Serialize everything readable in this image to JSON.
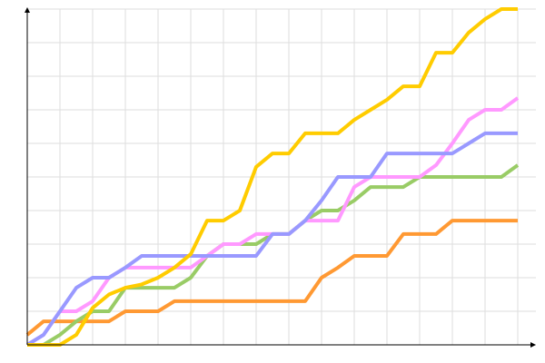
{
  "chart_data": {
    "type": "line",
    "grid": true,
    "tick_labels": false,
    "x": [
      0,
      1,
      2,
      3,
      4,
      5,
      6,
      7,
      8,
      9,
      10,
      11,
      12,
      13,
      14,
      15,
      16,
      17,
      18,
      19,
      20,
      21,
      22,
      23,
      24,
      25,
      26,
      27,
      28,
      29,
      30
    ],
    "xlim": [
      0,
      30
    ],
    "ylim": [
      0,
      10
    ],
    "xticks": [
      0,
      2,
      4,
      6,
      8,
      10,
      12,
      14,
      16,
      18,
      20,
      22,
      24,
      26,
      28,
      30
    ],
    "yticks": [
      0,
      1,
      2,
      3,
      4,
      5,
      6,
      7,
      8,
      9,
      10
    ],
    "series": [
      {
        "color": "#ff9933",
        "values": [
          0.3,
          0.7,
          0.7,
          0.7,
          0.7,
          0.7,
          1,
          1,
          1,
          1.3,
          1.3,
          1.3,
          1.3,
          1.3,
          1.3,
          1.3,
          1.3,
          1.3,
          2,
          2.3,
          2.65,
          2.65,
          2.65,
          3.3,
          3.3,
          3.3,
          3.7,
          3.7,
          3.7,
          3.7,
          3.7
        ]
      },
      {
        "color": "#99cc66",
        "values": [
          0,
          0,
          0.3,
          0.7,
          1,
          1,
          1.7,
          1.7,
          1.7,
          1.7,
          2,
          2.65,
          3,
          3,
          3,
          3.3,
          3.3,
          3.7,
          4,
          4,
          4.3,
          4.7,
          4.7,
          4.7,
          5,
          5,
          5,
          5,
          5,
          5,
          5.35
        ]
      },
      {
        "color": "#ff99ff",
        "values": [
          0,
          0.3,
          1,
          1,
          1.3,
          2,
          2.3,
          2.3,
          2.3,
          2.3,
          2.3,
          2.65,
          3,
          3,
          3.3,
          3.3,
          3.3,
          3.7,
          3.7,
          3.7,
          4.7,
          5,
          5,
          5,
          5,
          5.35,
          6,
          6.7,
          7,
          7,
          7.35
        ]
      },
      {
        "color": "#9999ff",
        "values": [
          0,
          0.3,
          1,
          1.7,
          2,
          2,
          2.3,
          2.65,
          2.65,
          2.65,
          2.65,
          2.65,
          2.65,
          2.65,
          2.65,
          3.3,
          3.3,
          3.7,
          4.3,
          5,
          5,
          5,
          5.7,
          5.7,
          5.7,
          5.7,
          5.7,
          6,
          6.3,
          6.3,
          6.3
        ]
      },
      {
        "color": "#ffcc00",
        "values": [
          0,
          0,
          0,
          0.3,
          1.1,
          1.5,
          1.7,
          1.8,
          2,
          2.3,
          2.7,
          3.7,
          3.7,
          4,
          5.3,
          5.7,
          5.7,
          6.3,
          6.3,
          6.3,
          6.7,
          7,
          7.3,
          7.7,
          7.7,
          8.7,
          8.7,
          9.3,
          9.7,
          10,
          10
        ]
      }
    ]
  }
}
